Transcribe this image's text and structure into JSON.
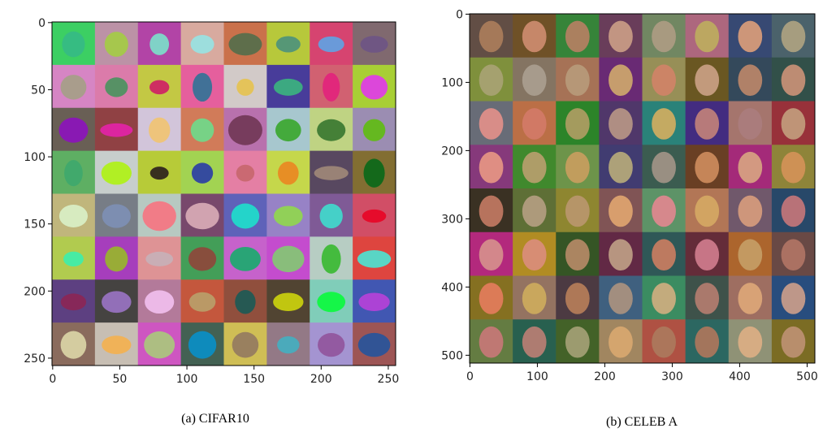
{
  "panels": [
    {
      "caption": "(a) CIFAR10",
      "xlim": [
        -0.5,
        255.5
      ],
      "ylim": [
        255.5,
        -0.5
      ],
      "xticks": [
        0,
        50,
        100,
        150,
        200,
        250
      ],
      "yticks": [
        0,
        50,
        100,
        150,
        200,
        250
      ]
    },
    {
      "caption": "(b) CELEB A",
      "xlim": [
        -0.5,
        511.5
      ],
      "ylim": [
        511.5,
        -0.5
      ],
      "xticks": [
        0,
        100,
        200,
        300,
        400,
        500
      ],
      "yticks": [
        0,
        100,
        200,
        300,
        400,
        500
      ]
    }
  ]
}
